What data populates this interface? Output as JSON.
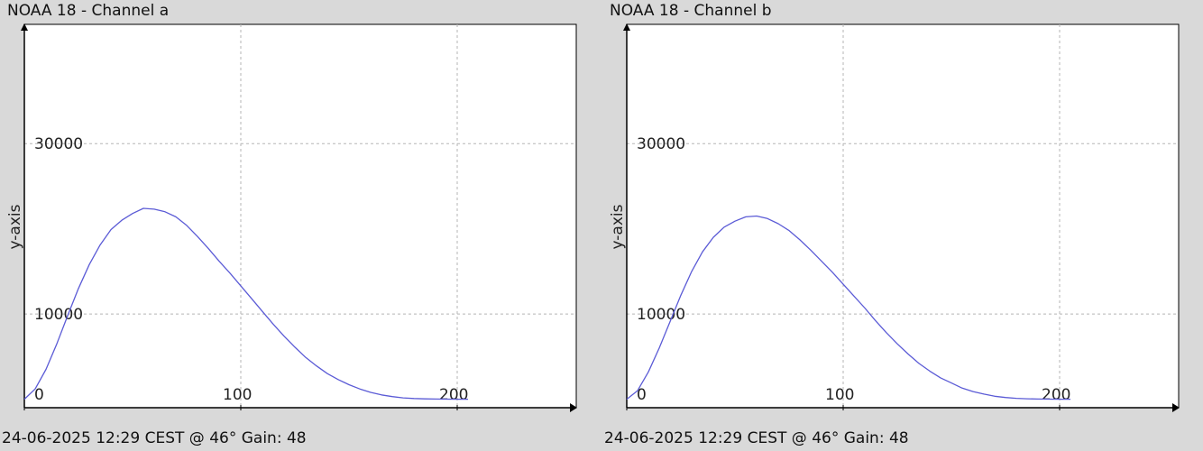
{
  "theme": {
    "background": "#d9d9d9",
    "plot_background": "#ffffff",
    "grid_color": "#b5b5b5",
    "axis_color": "#000000",
    "line_color": "#5b5bd6"
  },
  "chart_data": [
    {
      "type": "line",
      "title": "NOAA 18 - Channel a",
      "footer": "24-06-2025 12:29 CEST @ 46° Gain: 48",
      "xlabel": "",
      "ylabel": "y-axis",
      "grid": true,
      "xlim": [
        0,
        255
      ],
      "ylim": [
        -1000,
        44000
      ],
      "x_ticks": [
        0,
        100,
        200
      ],
      "x_tick_labels": [
        "0",
        "100",
        "200"
      ],
      "y_ticks": [
        10000,
        30000
      ],
      "y_tick_labels": [
        "10000",
        "30000"
      ],
      "series": [
        {
          "x": [
            0,
            5,
            10,
            15,
            20,
            25,
            30,
            35,
            40,
            45,
            50,
            55,
            60,
            65,
            70,
            75,
            80,
            85,
            90,
            95,
            100,
            105,
            110,
            115,
            120,
            125,
            130,
            135,
            140,
            145,
            150,
            155,
            160,
            165,
            170,
            175,
            180,
            185,
            190,
            195,
            200,
            205
          ],
          "y": [
            0,
            1200,
            3500,
            6500,
            9800,
            13000,
            15800,
            18100,
            19900,
            21000,
            21800,
            22400,
            22300,
            22000,
            21400,
            20400,
            19100,
            17700,
            16200,
            14800,
            13300,
            11800,
            10300,
            8800,
            7400,
            6100,
            4900,
            3900,
            3000,
            2300,
            1700,
            1200,
            800,
            500,
            300,
            150,
            80,
            40,
            20,
            10,
            0,
            0
          ]
        }
      ]
    },
    {
      "type": "line",
      "title": "NOAA 18 - Channel b",
      "footer": "24-06-2025 12:29 CEST @ 46° Gain: 48",
      "xlabel": "",
      "ylabel": "y-axis",
      "grid": true,
      "xlim": [
        0,
        255
      ],
      "ylim": [
        -1000,
        44000
      ],
      "x_ticks": [
        0,
        100,
        200
      ],
      "x_tick_labels": [
        "0",
        "100",
        "200"
      ],
      "y_ticks": [
        10000,
        30000
      ],
      "y_tick_labels": [
        "10000",
        "30000"
      ],
      "series": [
        {
          "x": [
            0,
            5,
            10,
            15,
            20,
            25,
            30,
            35,
            40,
            45,
            50,
            55,
            60,
            65,
            70,
            75,
            80,
            85,
            90,
            95,
            100,
            105,
            110,
            115,
            120,
            125,
            130,
            135,
            140,
            145,
            150,
            155,
            160,
            165,
            170,
            175,
            180,
            185,
            190,
            195,
            200,
            205
          ],
          "y": [
            0,
            1000,
            3200,
            6000,
            9100,
            12200,
            15000,
            17300,
            19000,
            20200,
            20900,
            21400,
            21500,
            21200,
            20600,
            19800,
            18700,
            17500,
            16200,
            14900,
            13500,
            12100,
            10700,
            9200,
            7800,
            6500,
            5300,
            4200,
            3300,
            2500,
            1900,
            1300,
            900,
            600,
            350,
            200,
            100,
            50,
            20,
            10,
            0,
            0
          ]
        }
      ]
    }
  ]
}
